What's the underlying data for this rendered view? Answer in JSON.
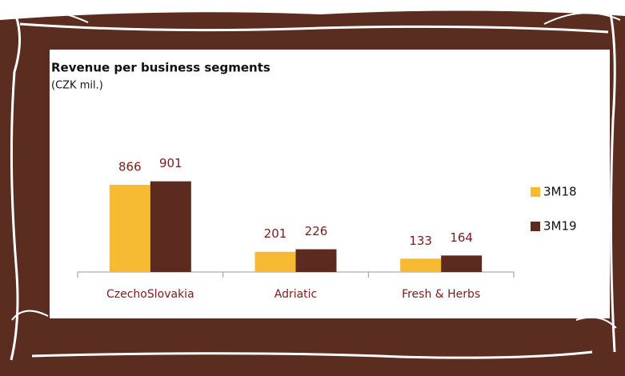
{
  "chart_data": {
    "type": "bar",
    "title": "Revenue per business segments",
    "subtitle": "(CZK mil.)",
    "categories": [
      "CzechoSlovakia",
      "Adriatic",
      "Fresh & Herbs"
    ],
    "series": [
      {
        "name": "3M18",
        "color": "#f8b933",
        "values": [
          866,
          201,
          133
        ]
      },
      {
        "name": "3M19",
        "color": "#5c2a1e",
        "values": [
          901,
          226,
          164
        ]
      }
    ],
    "legend": "right"
  }
}
